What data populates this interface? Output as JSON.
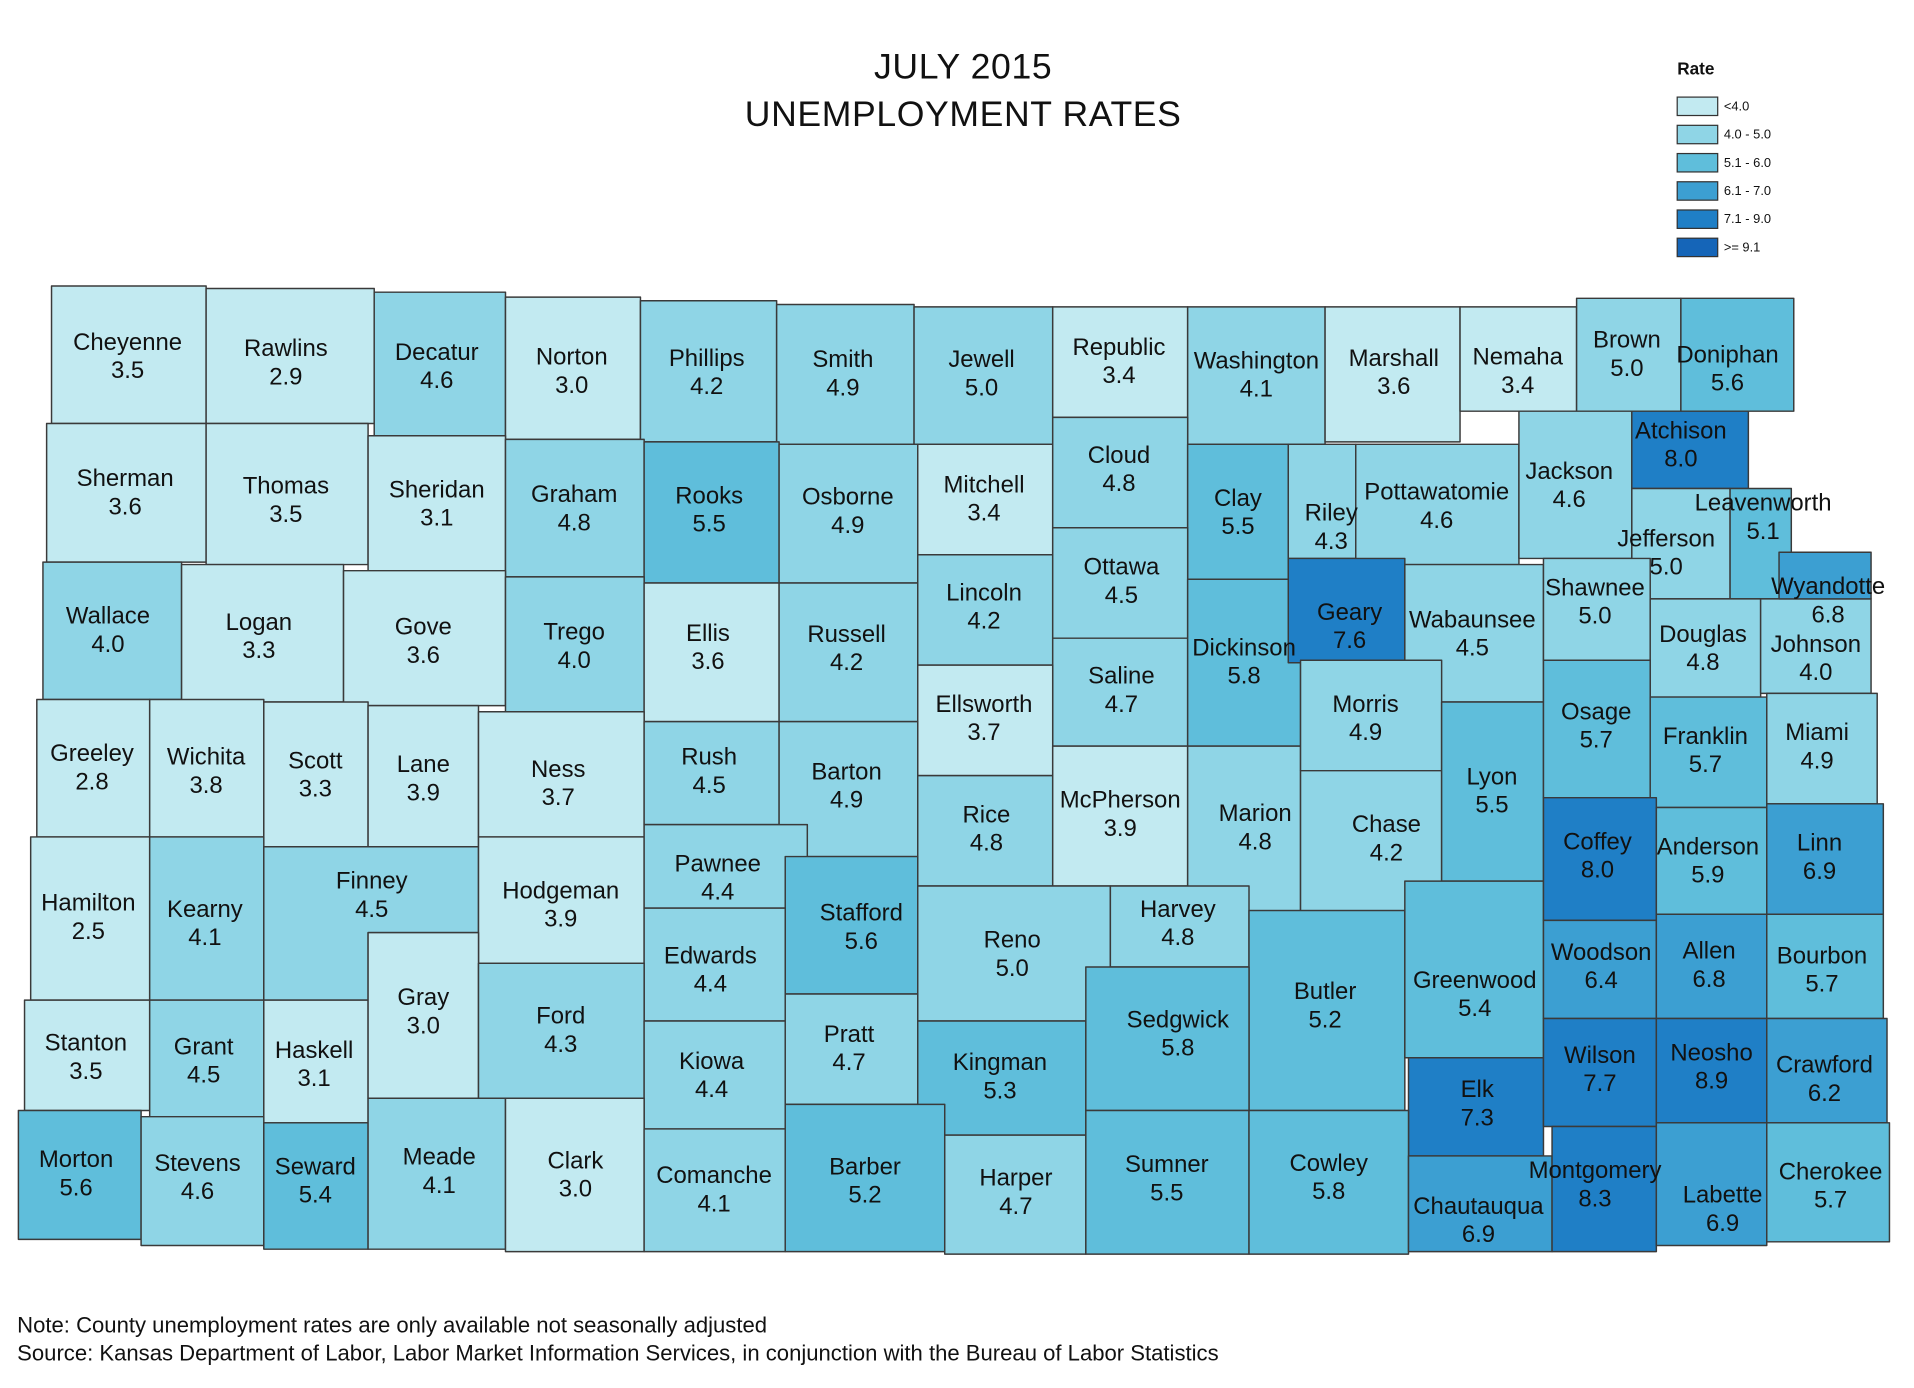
{
  "title": "JULY 2015",
  "subtitle": "UNEMPLOYMENT RATES",
  "legend": {
    "title": "Rate",
    "bins": [
      {
        "label": "<4.0",
        "color": "#c2eaf1"
      },
      {
        "label": "4.0 - 5.0",
        "color": "#8fd5e6",
        "min": 4.0
      },
      {
        "label": "5.1 - 6.0",
        "color": "#5fbedb",
        "min": 5.1
      },
      {
        "label": "6.1 - 7.0",
        "color": "#3c9fd2",
        "min": 6.1
      },
      {
        "label": "7.1 - 9.0",
        "color": "#1f7fc6",
        "min": 7.1
      },
      {
        "label": ">= 9.1",
        "color": "#1565b8",
        "min": 9.1
      }
    ]
  },
  "counties": {
    "names": [
      "Cheyenne",
      "Rawlins",
      "Decatur",
      "Norton",
      "Phillips",
      "Smith",
      "Jewell",
      "Republic",
      "Washington",
      "Marshall",
      "Nemaha",
      "Brown",
      "Doniphan",
      "Sherman",
      "Thomas",
      "Sheridan",
      "Graham",
      "Rooks",
      "Osborne",
      "Mitchell",
      "Cloud",
      "Clay",
      "Riley",
      "Pottawatomie",
      "Jackson",
      "Atchison",
      "Leavenworth",
      "Jefferson",
      "Wallace",
      "Logan",
      "Gove",
      "Trego",
      "Ellis",
      "Russell",
      "Lincoln",
      "Ottawa",
      "Saline",
      "Dickinson",
      "Geary",
      "Wabaunsee",
      "Shawnee",
      "Douglas",
      "Johnson",
      "Wyandotte",
      "Ellsworth",
      "Greeley",
      "Wichita",
      "Scott",
      "Lane",
      "Ness",
      "Rush",
      "Barton",
      "Rice",
      "McPherson",
      "Marion",
      "Morris",
      "Chase",
      "Lyon",
      "Osage",
      "Franklin",
      "Miami",
      "Hamilton",
      "Kearny",
      "Finney",
      "Hodgeman",
      "Pawnee",
      "Stafford",
      "Edwards",
      "Reno",
      "Harvey",
      "Butler",
      "Greenwood",
      "Coffey",
      "Anderson",
      "Linn",
      "Woodson",
      "Allen",
      "Bourbon",
      "Stanton",
      "Grant",
      "Haskell",
      "Gray",
      "Ford",
      "Kiowa",
      "Pratt",
      "Kingman",
      "Sedgwick",
      "Elk",
      "Wilson",
      "Neosho",
      "Crawford",
      "Morton",
      "Stevens",
      "Seward",
      "Meade",
      "Clark",
      "Comanche",
      "Barber",
      "Harper",
      "Sumner",
      "Cowley",
      "Chautauqua",
      "Montgomery",
      "Labette",
      "Cherokee"
    ],
    "values": [
      3.5,
      2.9,
      4.6,
      3.0,
      4.2,
      4.9,
      5.0,
      3.4,
      4.1,
      3.6,
      3.4,
      5.0,
      5.6,
      3.6,
      3.5,
      3.1,
      4.8,
      5.5,
      4.9,
      3.4,
      4.8,
      5.5,
      4.3,
      4.6,
      4.6,
      8.0,
      5.1,
      5.0,
      4.0,
      3.3,
      3.6,
      4.0,
      3.6,
      4.2,
      4.2,
      4.5,
      4.7,
      5.8,
      7.6,
      4.5,
      5.0,
      4.8,
      4.0,
      6.8,
      3.7,
      2.8,
      3.8,
      3.3,
      3.9,
      3.7,
      4.5,
      4.9,
      4.8,
      3.9,
      4.8,
      4.9,
      4.2,
      5.5,
      5.7,
      5.7,
      4.9,
      2.5,
      4.1,
      4.5,
      3.9,
      4.4,
      5.6,
      4.4,
      5.0,
      4.8,
      5.2,
      5.4,
      8.0,
      5.9,
      6.9,
      6.4,
      6.8,
      5.7,
      3.5,
      4.5,
      3.1,
      3.0,
      4.3,
      4.4,
      4.7,
      5.3,
      5.8,
      7.3,
      7.7,
      8.9,
      6.2,
      5.6,
      4.6,
      5.4,
      4.1,
      3.0,
      4.1,
      5.2,
      4.7,
      5.5,
      5.8,
      6.9,
      8.3,
      6.9,
      5.7
    ],
    "value_labels": [
      "3.5",
      "2.9",
      "4.6",
      "3.0",
      "4.2",
      "4.9",
      "5.0",
      "3.4",
      "4.1",
      "3.6",
      "3.4",
      "5.0",
      "5.6",
      "3.6",
      "3.5",
      "3.1",
      "4.8",
      "5.5",
      "4.9",
      "3.4",
      "4.8",
      "5.5",
      "4.3",
      "4.6",
      "4.6",
      "8.0",
      "5.1",
      "5.0",
      "4.0",
      "3.3",
      "3.6",
      "4.0",
      "3.6",
      "4.2",
      "4.2",
      "4.5",
      "4.7",
      "5.8",
      "7.6",
      "4.5",
      "5.0",
      "4.8",
      "4.0",
      "6.8",
      "3.7",
      "2.8",
      "3.8",
      "3.3",
      "3.9",
      "3.7",
      "4.5",
      "4.9",
      "4.8",
      "3.9",
      "4.8",
      "4.9",
      "4.2",
      "5.5",
      "5.7",
      "5.7",
      "4.9",
      "2.5",
      "4.1",
      "4.5",
      "3.9",
      "4.4",
      "5.6",
      "4.4",
      "5.0",
      "4.8",
      "5.2",
      "5.4",
      "8.0",
      "5.9",
      "6.9",
      "6.4",
      "6.8",
      "5.7",
      "3.5",
      "4.5",
      "3.1",
      "3.0",
      "4.3",
      "4.4",
      "4.7",
      "5.3",
      "5.8",
      "7.3",
      "7.7",
      "8.9",
      "6.2",
      "5.6",
      "4.6",
      "5.4",
      "4.1",
      "3.0",
      "4.1",
      "5.2",
      "4.7",
      "5.5",
      "5.8",
      "6.9",
      "8.3",
      "6.9",
      "5.7"
    ]
  },
  "notes": [
    "Note: County unemployment rates are only available not seasonally adjusted",
    "Source: Kansas Department of Labor, Labor Market Information Services, in conjunction with the Bureau of Labor Statistics"
  ]
}
